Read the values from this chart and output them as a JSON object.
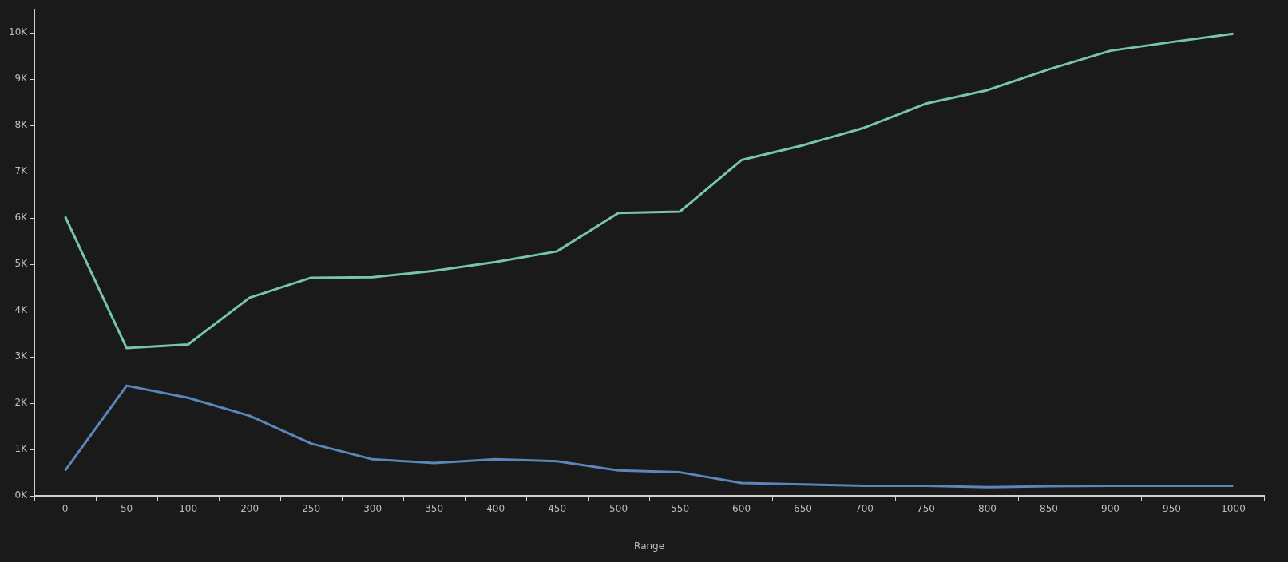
{
  "chart_data": {
    "type": "line",
    "xlabel": "Range",
    "categories": [
      "0",
      "50",
      "100",
      "200",
      "250",
      "300",
      "350",
      "400",
      "450",
      "500",
      "550",
      "600",
      "650",
      "700",
      "750",
      "800",
      "850",
      "900",
      "950",
      "1000"
    ],
    "series": [
      {
        "color": "#76c5b3",
        "values": [
          6030,
          3190,
          3270,
          4280,
          4710,
          4720,
          4860,
          5050,
          5280,
          6110,
          6140,
          7250,
          7570,
          7950,
          8470,
          8760,
          9210,
          9610,
          9800,
          9980
        ]
      },
      {
        "color": "#5a86b9",
        "values": [
          550,
          2380,
          2120,
          1730,
          1130,
          790,
          710,
          790,
          750,
          550,
          510,
          280,
          250,
          220,
          220,
          190,
          210,
          220,
          220,
          220
        ]
      }
    ],
    "ylim": [
      0,
      10500
    ],
    "yticks": [
      {
        "value": 0,
        "label": "0K"
      },
      {
        "value": 1000,
        "label": "1K"
      },
      {
        "value": 2000,
        "label": "2K"
      },
      {
        "value": 3000,
        "label": "3K"
      },
      {
        "value": 4000,
        "label": "4K"
      },
      {
        "value": 5000,
        "label": "5K"
      },
      {
        "value": 6000,
        "label": "6K"
      },
      {
        "value": 7000,
        "label": "7K"
      },
      {
        "value": 8000,
        "label": "8K"
      },
      {
        "value": 9000,
        "label": "9K"
      },
      {
        "value": 10000,
        "label": "10K"
      }
    ],
    "grid": false,
    "legend": false,
    "marker": "none",
    "line_style": "solid"
  }
}
